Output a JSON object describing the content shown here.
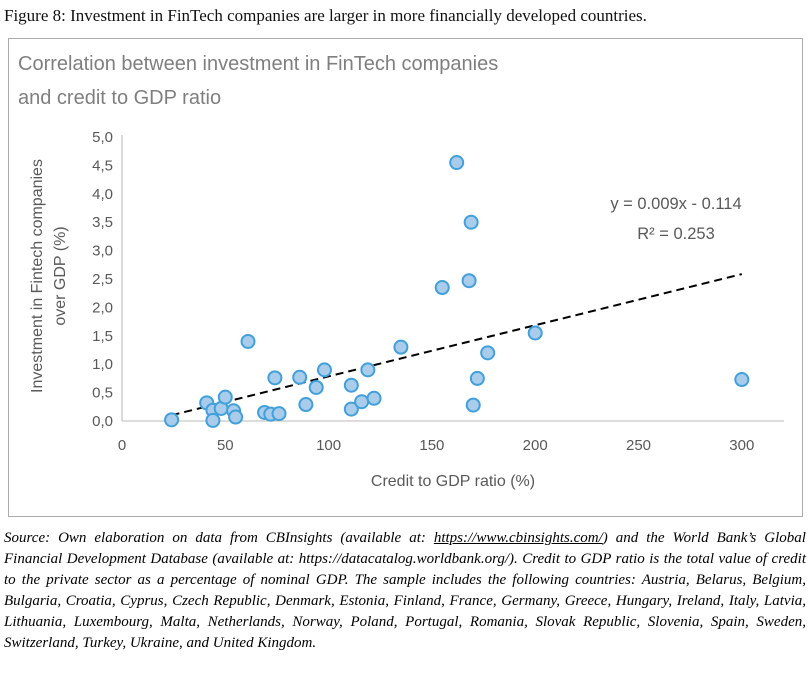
{
  "figure": {
    "caption": "Figure 8: Investment in FinTech companies are larger in more financially developed countries."
  },
  "chart_data": {
    "type": "scatter",
    "title": "Correlation between investment in FinTech companies and credit to GDP ratio",
    "title_lines": [
      "Correlation between investment in FinTech companies",
      "and credit to GDP ratio"
    ],
    "xlabel": "Credit to GDP ratio (%)",
    "ylabel_lines": [
      "Investment in Fintech companies",
      "over GDP (%)"
    ],
    "xlim": [
      0,
      320
    ],
    "ylim": [
      0,
      5
    ],
    "grid": false,
    "x_ticks": [
      0,
      50,
      100,
      150,
      200,
      250,
      300
    ],
    "y_tick_values": [
      0,
      0.5,
      1,
      1.5,
      2,
      2.5,
      3,
      3.5,
      4,
      4.5,
      5
    ],
    "y_tick_labels": [
      "0,0",
      "0,5",
      "1,0",
      "1,5",
      "2,0",
      "2,5",
      "3,0",
      "3,5",
      "4,0",
      "4,5",
      "5,0"
    ],
    "points": [
      [
        24,
        0.02
      ],
      [
        41,
        0.32
      ],
      [
        44,
        0.19
      ],
      [
        44,
        0.01
      ],
      [
        48,
        0.22
      ],
      [
        50,
        0.42
      ],
      [
        54,
        0.18
      ],
      [
        55,
        0.07
      ],
      [
        61,
        1.4
      ],
      [
        69,
        0.15
      ],
      [
        72,
        0.12
      ],
      [
        74,
        0.76
      ],
      [
        76,
        0.13
      ],
      [
        86,
        0.77
      ],
      [
        89,
        0.29
      ],
      [
        94,
        0.59
      ],
      [
        98,
        0.9
      ],
      [
        111,
        0.63
      ],
      [
        111,
        0.21
      ],
      [
        116,
        0.34
      ],
      [
        119,
        0.9
      ],
      [
        122,
        0.4
      ],
      [
        135,
        1.3
      ],
      [
        155,
        2.35
      ],
      [
        162,
        4.55
      ],
      [
        168,
        2.47
      ],
      [
        169,
        3.5
      ],
      [
        170,
        0.28
      ],
      [
        172,
        0.75
      ],
      [
        177,
        1.2
      ],
      [
        200,
        1.55
      ],
      [
        300,
        0.73
      ]
    ],
    "trendline": {
      "equation": "y = 0.009x - 0.114",
      "r_squared": "R² = 0.253",
      "slope": 0.009,
      "intercept": -0.114,
      "x_start": 24,
      "x_end": 300
    },
    "colors": {
      "marker_fill": "#a8ccea",
      "marker_stroke": "#41a0dc",
      "axis_line": "#c6c6c6",
      "axis_text": "#595959",
      "title_text": "#7f7f7f",
      "trendline": "#000000"
    }
  },
  "source_note": {
    "part1": "Source: Own elaboration on data from CBInsights (available at: ",
    "link1": "https://www.cbinsights.com/",
    "part2": ") and the World Bank’s Global Financial Development Database (available at: https://datacatalog.worldbank.org/). Credit to GDP ratio is the total value of credit to the private sector as a percentage of nominal GDP. The sample includes the following countries: Austria, Belarus, Belgium, Bulgaria, Croatia, Cyprus, Czech Republic, Denmark, Estonia, Finland, France, Germany, Greece, Hungary, Ireland, Italy, Latvia, Lithuania, Luxembourg, Malta, Netherlands, Norway, Poland, Portugal, Romania, Slovak Republic, Slovenia, Spain, Sweden, Switzerland, Turkey, Ukraine, and United Kingdom."
  }
}
